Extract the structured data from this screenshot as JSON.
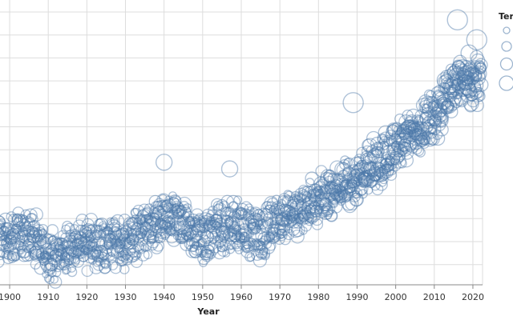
{
  "chart_data": {
    "type": "scatter",
    "xlabel": "Year",
    "ylabel": "",
    "legend_title": "Ter",
    "legend_placement": "right",
    "grid": true,
    "xlim": [
      1897.5,
      2022.5
    ],
    "xticks": [
      1900,
      1910,
      1920,
      1930,
      1940,
      1950,
      1960,
      1970,
      1980,
      1990,
      2000,
      2010,
      2020
    ],
    "marker": "hollow-circle",
    "marker_size_encodes": "Ter",
    "point_color": "#4c78a8",
    "trend_points": {
      "year": [
        1897,
        1905,
        1910,
        1915,
        1920,
        1930,
        1940,
        1945,
        1950,
        1955,
        1960,
        1965,
        1970,
        1980,
        1990,
        2000,
        2010,
        2016,
        2022
      ],
      "y": [
        0.38,
        0.48,
        0.14,
        0.2,
        0.3,
        0.35,
        0.65,
        0.7,
        0.4,
        0.55,
        0.6,
        0.45,
        0.7,
        1.0,
        1.3,
        1.75,
        2.25,
        2.8,
        2.7
      ]
    },
    "outliers": [
      {
        "year": 2016,
        "y": 3.7,
        "size": 3
      },
      {
        "year": 2021,
        "y": 3.4,
        "size": 3
      },
      {
        "year": 2019,
        "y": 3.2,
        "size": 2
      },
      {
        "year": 1989,
        "y": 2.45,
        "size": 3
      },
      {
        "year": 1957,
        "y": 1.45,
        "size": 2
      },
      {
        "year": 1940,
        "y": 1.55,
        "size": 2
      },
      {
        "year": 1908,
        "y": -0.05,
        "size": 1
      },
      {
        "year": 1897,
        "y": 0.05,
        "size": 1
      }
    ]
  }
}
